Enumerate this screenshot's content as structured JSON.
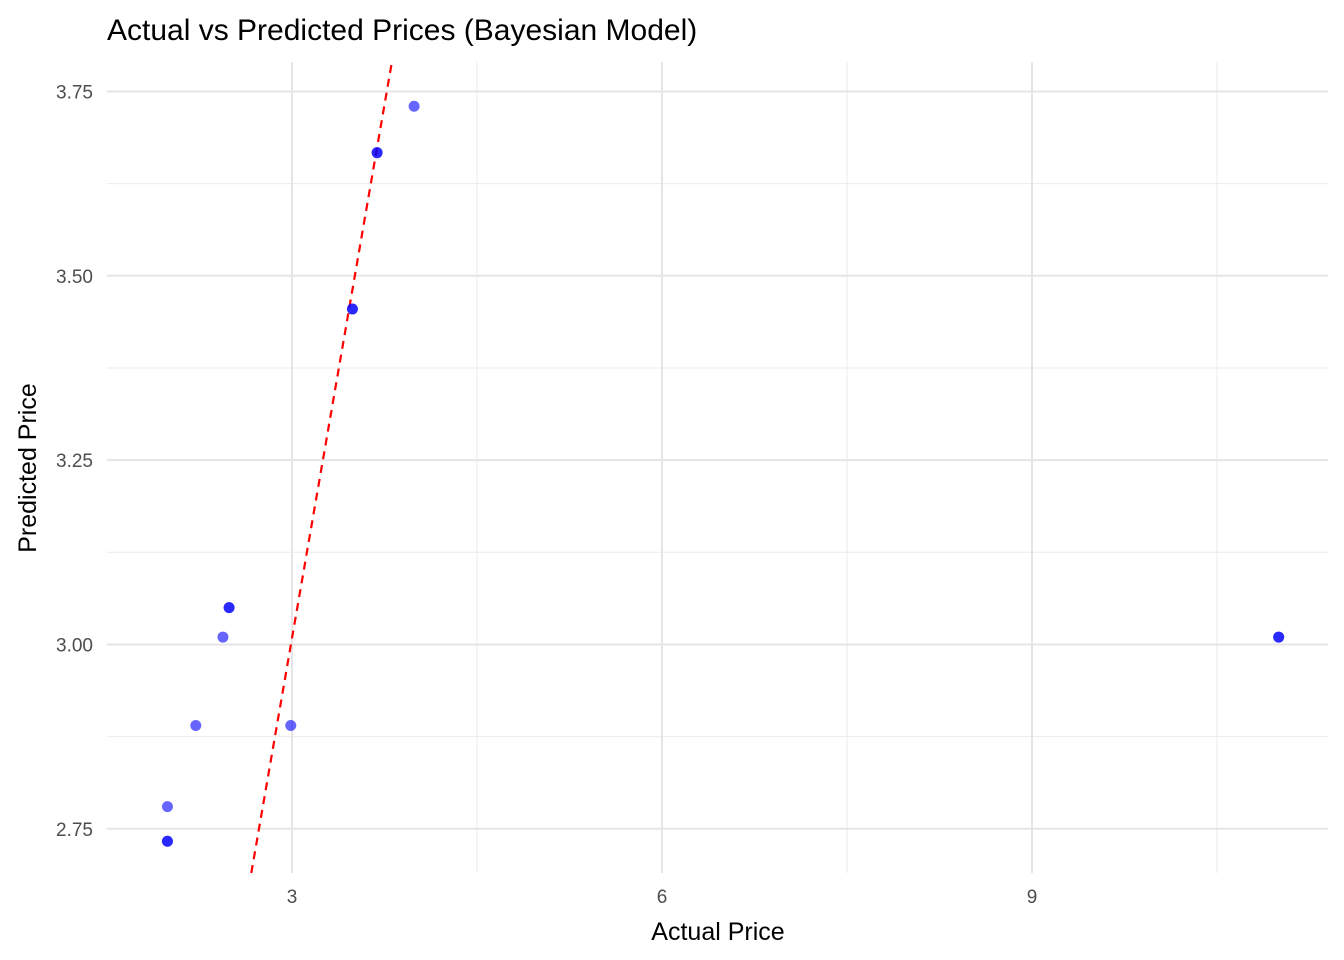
{
  "chart_data": {
    "type": "scatter",
    "title": "Actual vs Predicted Prices (Bayesian Model)",
    "xlabel": "Actual Price",
    "ylabel": "Predicted Price",
    "xlim": [
      1.5,
      11.4
    ],
    "ylim": [
      2.69,
      3.79
    ],
    "x_ticks": [
      3,
      6,
      9
    ],
    "x_tick_labels": [
      "3",
      "6",
      "9"
    ],
    "x_minor_ticks": [
      4.5,
      7.5,
      10.5
    ],
    "y_ticks": [
      2.75,
      3.0,
      3.25,
      3.5,
      3.75
    ],
    "y_tick_labels": [
      "2.75",
      "3.00",
      "3.25",
      "3.50",
      "3.75"
    ],
    "y_minor_ticks": [
      2.875,
      3.125,
      3.375,
      3.625
    ],
    "grid": true,
    "point_color": "#0000FF",
    "point_opacity": 0.6,
    "series": [
      {
        "x": [
          1.99,
          1.99,
          1.99,
          2.22,
          2.44,
          2.49,
          2.49,
          2.99,
          3.49,
          3.49,
          3.69,
          3.69,
          3.99,
          11.0,
          11.0
        ],
        "y": [
          2.78,
          2.733,
          2.733,
          2.89,
          3.01,
          3.05,
          3.05,
          2.89,
          3.455,
          3.455,
          3.667,
          3.667,
          3.73,
          3.01,
          3.01
        ]
      }
    ],
    "reference_line": {
      "x": [
        2.67,
        3.81
      ],
      "y": [
        2.69,
        3.79
      ],
      "color": "#FF0000",
      "style": "dashed"
    }
  }
}
